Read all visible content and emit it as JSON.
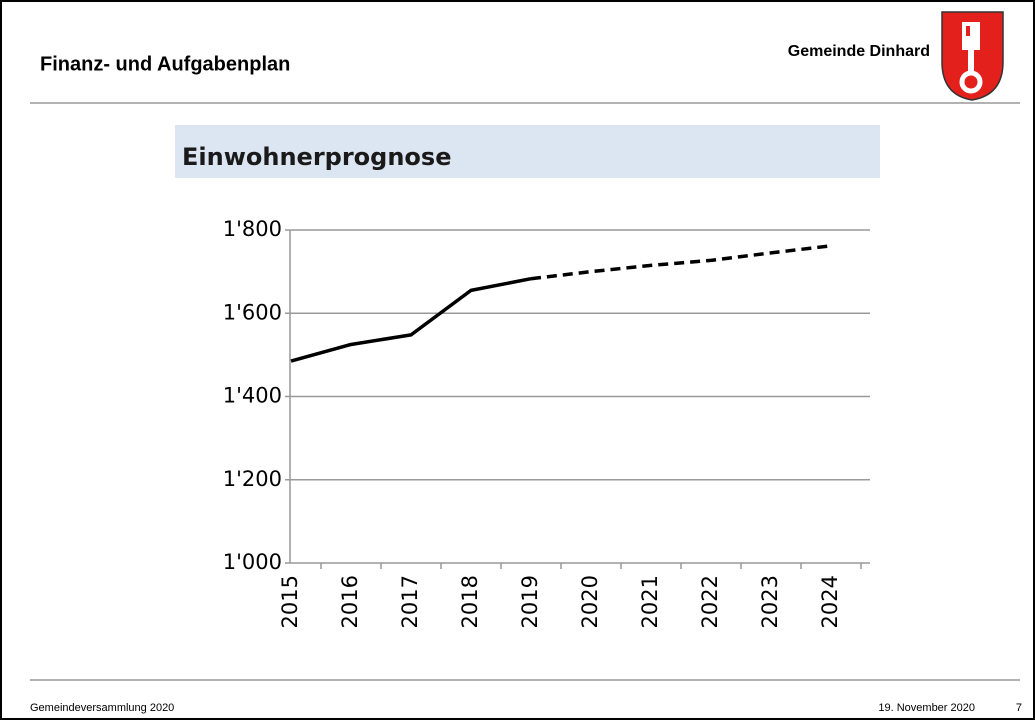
{
  "header": {
    "title": "Finanz- und Aufgabenplan",
    "organization": "Gemeinde Dinhard"
  },
  "footer": {
    "left": "Gemeindeversammlung 2020",
    "date": "19. November 2020",
    "page": "7"
  },
  "chart_data": {
    "type": "line",
    "title": "Einwohnerprognose",
    "categories": [
      "2015",
      "2016",
      "2017",
      "2018",
      "2019",
      "2020",
      "2021",
      "2022",
      "2023",
      "2024"
    ],
    "series": [
      {
        "color": "#000000",
        "style": "solid",
        "values": [
          1485,
          1525,
          1548,
          1655,
          1683,
          null,
          null,
          null,
          null,
          null
        ]
      },
      {
        "color": "#000000",
        "style": "dashed",
        "values": [
          null,
          null,
          null,
          null,
          1683,
          1700,
          1715,
          1727,
          1745,
          1762
        ]
      }
    ],
    "ylim": [
      1000,
      1800
    ],
    "yticks": [
      {
        "value": 1000,
        "label": "1'000"
      },
      {
        "value": 1200,
        "label": "1'200"
      },
      {
        "value": 1400,
        "label": "1'400"
      },
      {
        "value": 1600,
        "label": "1'600"
      },
      {
        "value": 1800,
        "label": "1'800"
      }
    ],
    "grid": true
  }
}
